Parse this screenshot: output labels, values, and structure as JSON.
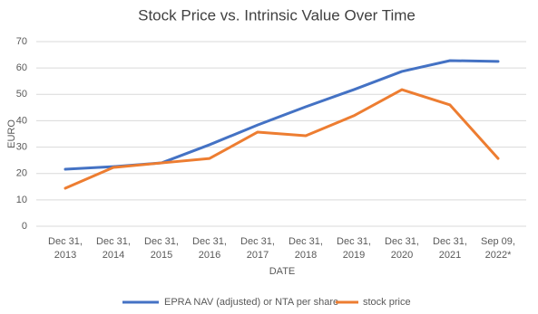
{
  "chart_data": {
    "type": "line",
    "title": "Stock Price vs. Intrinsic Value Over Time",
    "x_label": "DATE",
    "y_label": "EURO",
    "categories": [
      [
        "Dec 31,",
        "2013"
      ],
      [
        "Dec 31,",
        "2014"
      ],
      [
        "Dec 31,",
        "2015"
      ],
      [
        "Dec 31,",
        "2016"
      ],
      [
        "Dec 31,",
        "2017"
      ],
      [
        "Dec 31,",
        "2018"
      ],
      [
        "Dec 31,",
        "2019"
      ],
      [
        "Dec 31,",
        "2020"
      ],
      [
        "Dec 31,",
        "2021"
      ],
      [
        "Sep 09,",
        "2022*"
      ]
    ],
    "series": [
      {
        "name": "EPRA NAV (adjusted) or NTA per share",
        "color": "#4472c4",
        "values": [
          21.6,
          22.6,
          24,
          30.9,
          38.4,
          45.3,
          51.8,
          58.7,
          62.8,
          62.5
        ]
      },
      {
        "name": "stock price",
        "color": "#ed7d31",
        "values": [
          14.4,
          22.3,
          24,
          25.7,
          35.7,
          34.3,
          41.9,
          51.8,
          46,
          25.7
        ]
      }
    ],
    "ylim": [
      0,
      70
    ],
    "yticks": [
      0,
      10,
      20,
      30,
      40,
      50,
      60,
      70
    ],
    "grid": true,
    "legend": "bottom"
  }
}
